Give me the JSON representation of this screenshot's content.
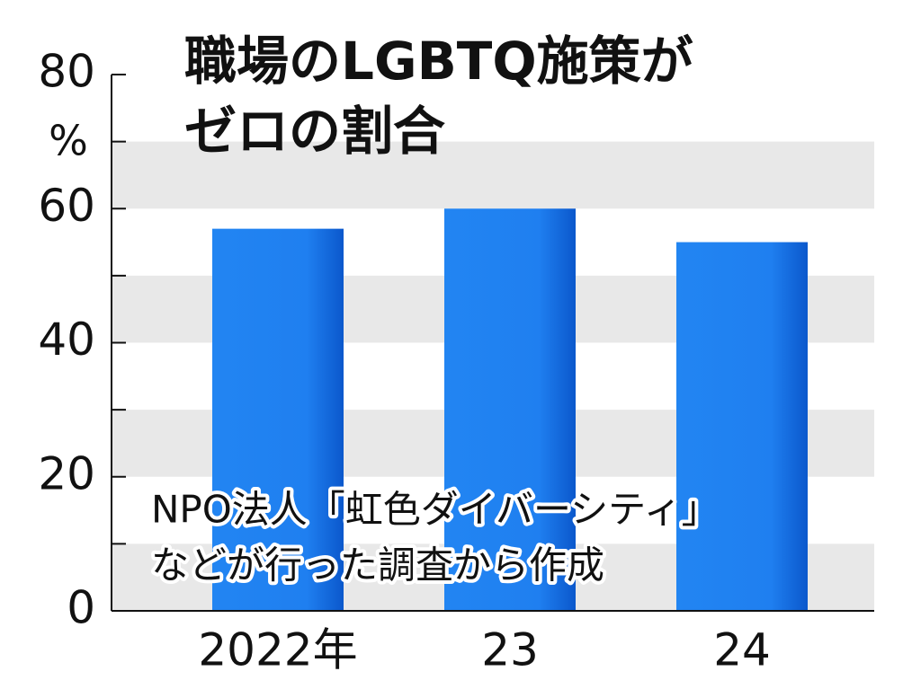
{
  "chart_data": {
    "type": "bar",
    "title": [
      "職場のLGBTQ施策が",
      "ゼロの割合"
    ],
    "y_unit": "%",
    "categories": [
      "2022年",
      "23",
      "24"
    ],
    "values": [
      57,
      60,
      55
    ],
    "color": "#1f7ff0",
    "ylim": [
      0,
      80
    ],
    "yticks": [
      0,
      20,
      40,
      60,
      80
    ],
    "grid": true,
    "source": [
      "NPO法人「虹色ダイバーシティ」",
      "などが行った調査から作成"
    ]
  }
}
